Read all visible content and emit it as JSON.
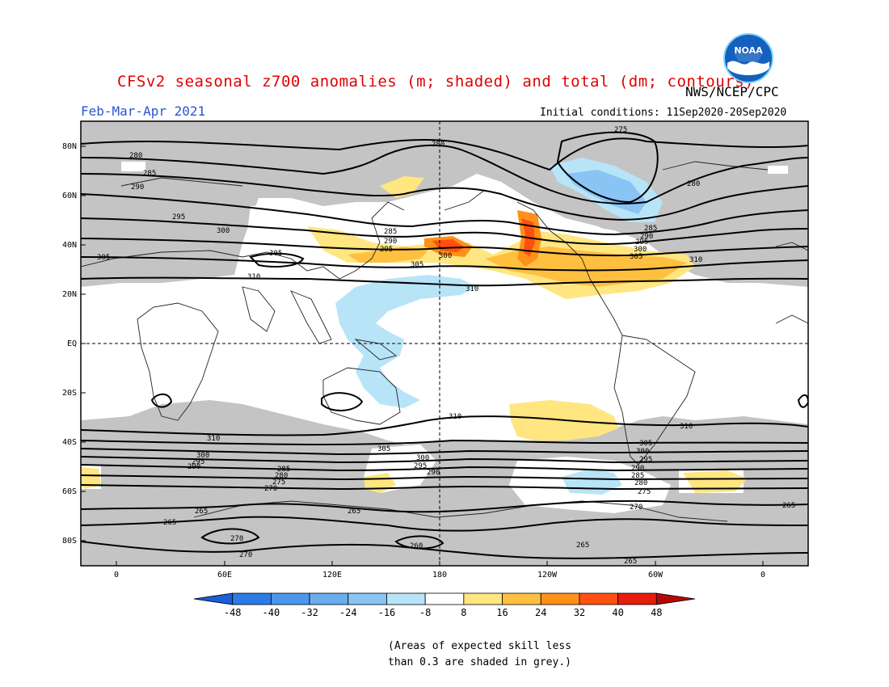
{
  "title": "CFSv2 seasonal z700 anomalies (m; shaded) and total (dm; contours)",
  "agency": "NWS/NCEP/CPC",
  "season": "Feb-Mar-Apr 2021",
  "initial_conditions": "Initial conditions: 11Sep2020-20Sep2020",
  "logo_text": "NOAA",
  "lat_labels": [
    "80N",
    "60N",
    "40N",
    "20N",
    "EQ",
    "20S",
    "40S",
    "60S",
    "80S"
  ],
  "lon_labels": [
    "0",
    "60E",
    "120E",
    "180",
    "120W",
    "60W",
    "0"
  ],
  "colorbar": {
    "labels": [
      "-48",
      "-40",
      "-32",
      "-24",
      "-16",
      "-8",
      "8",
      "16",
      "24",
      "32",
      "40",
      "48"
    ],
    "colors": [
      "#1a5ed8",
      "#2c7ae6",
      "#4c96ee",
      "#8ac4f5",
      "#b8e4f8",
      "#ffffff",
      "#ffe680",
      "#ffc040",
      "#ff9018",
      "#ff5010",
      "#e81c0c",
      "#b40808"
    ]
  },
  "contour_labels": {
    "c275": "275",
    "c280": "280",
    "c285": "285",
    "c290": "290",
    "c295": "295",
    "c300": "300",
    "c305": "305",
    "c310": "310",
    "c265": "265",
    "c270": "270",
    "c260": "260"
  },
  "note_line1": "(Areas of expected skill less",
  "note_line2": "than 0.3 are shaded in grey.)"
}
